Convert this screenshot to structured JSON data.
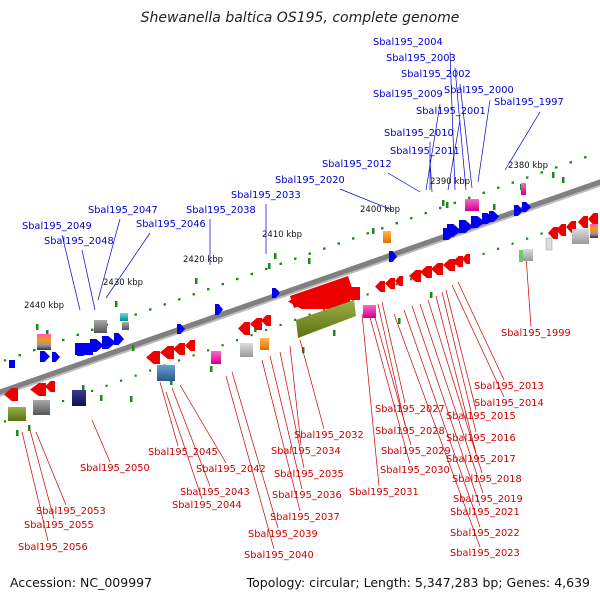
{
  "title": "Shewanella baltica OS195, complete genome",
  "footer": {
    "accession": "Accession: NC_009997",
    "stats": "Topology: circular; Length: 5,347,283 bp; Genes: 4,639"
  },
  "colors": {
    "backbone": "#808080",
    "ticks": "#1a8a1a",
    "forward_label": "#0000cc",
    "reverse_label": "#cc0000",
    "forward_gene": "#0000ee",
    "reverse_gene": "#ee0000"
  },
  "ticks": [
    "2380 kbp",
    "2390 kbp",
    "2400 kbp",
    "2410 kbp",
    "2420 kbp",
    "2430 kbp",
    "2440 kbp"
  ],
  "forward_labels": [
    "Sbal195_2004",
    "Sbal195_2003",
    "Sbal195_2002",
    "Sbal195_2009",
    "Sbal195_2000",
    "Sbal195_2001",
    "Sbal195_1997",
    "Sbal195_2010",
    "Sbal195_2011",
    "Sbal195_2012",
    "Sbal195_2020",
    "Sbal195_2033",
    "Sbal195_2038",
    "Sbal195_2047",
    "Sbal195_2046",
    "Sbal195_2049",
    "Sbal195_2048"
  ],
  "reverse_labels": [
    "Sbal195_1999",
    "Sbal195_2013",
    "Sbal195_2014",
    "Sbal195_2027",
    "Sbal195_2015",
    "Sbal195_2028",
    "Sbal195_2016",
    "Sbal195_2032",
    "Sbal195_2029",
    "Sbal195_2034",
    "Sbal195_2017",
    "Sbal195_2045",
    "Sbal195_2030",
    "Sbal195_2042",
    "Sbal195_2035",
    "Sbal195_2050",
    "Sbal195_2018",
    "Sbal195_2043",
    "Sbal195_2031",
    "Sbal195_2036",
    "Sbal195_2044",
    "Sbal195_2019",
    "Sbal195_2053",
    "Sbal195_2037",
    "Sbal195_2021",
    "Sbal195_2055",
    "Sbal195_2039",
    "Sbal195_2022",
    "Sbal195_2056",
    "Sbal195_2040",
    "Sbal195_2023"
  ]
}
